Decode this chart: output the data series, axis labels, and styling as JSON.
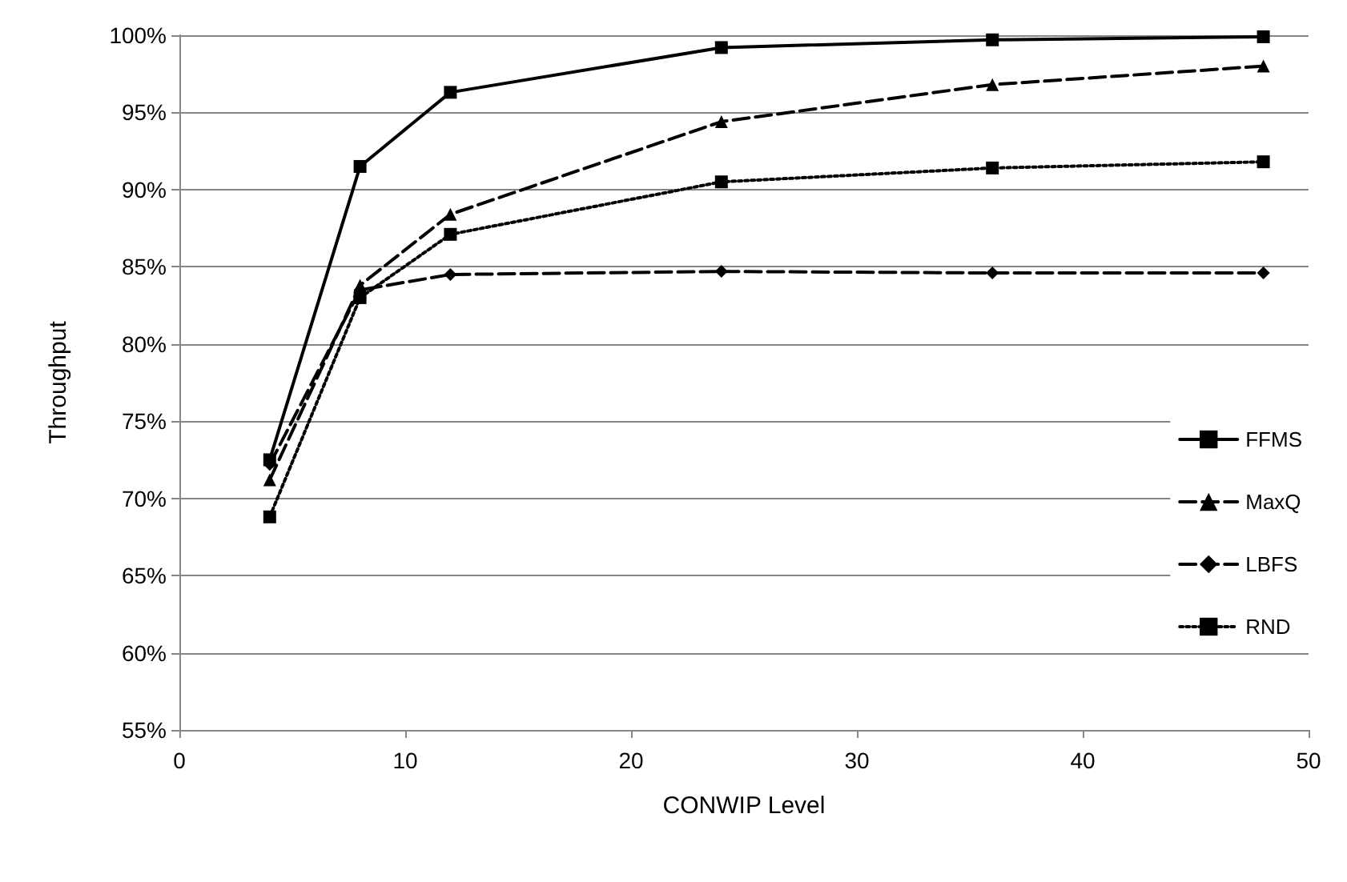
{
  "chart_data": {
    "type": "line",
    "xlabel": "CONWIP Level",
    "ylabel": "Throughput",
    "x": [
      4,
      8,
      12,
      24,
      36,
      48
    ],
    "series": [
      {
        "name": "FFMS",
        "color": "#000000",
        "marker": "square",
        "line_style": "solid",
        "values": [
          72.5,
          91.5,
          96.3,
          99.2,
          99.7,
          99.9
        ]
      },
      {
        "name": "MaxQ",
        "color": "#000000",
        "marker": "triangle",
        "line_style": "dashed",
        "values": [
          71.2,
          83.8,
          88.4,
          94.4,
          96.8,
          98.0
        ]
      },
      {
        "name": "LBFS",
        "color": "#000000",
        "marker": "diamond",
        "line_style": "dashed",
        "values": [
          72.2,
          83.5,
          84.5,
          84.7,
          84.6,
          84.6
        ]
      },
      {
        "name": "RND",
        "color": "#000000",
        "marker": "square",
        "line_style": "dotted",
        "values": [
          68.8,
          83.0,
          87.1,
          90.5,
          91.4,
          91.8
        ]
      }
    ],
    "xlim": [
      0,
      50
    ],
    "xticks": [
      0,
      10,
      20,
      30,
      40,
      50
    ],
    "ylim": [
      55,
      100
    ],
    "yticks": [
      {
        "value": 55,
        "label": "55%"
      },
      {
        "value": 60,
        "label": "60%"
      },
      {
        "value": 65,
        "label": "65%"
      },
      {
        "value": 70,
        "label": "70%"
      },
      {
        "value": 75,
        "label": "75%"
      },
      {
        "value": 80,
        "label": "80%"
      },
      {
        "value": 85,
        "label": "85%"
      },
      {
        "value": 90,
        "label": "90%"
      },
      {
        "value": 95,
        "label": "95%"
      },
      {
        "value": 100,
        "label": "100%"
      }
    ],
    "grid": "y",
    "legend": "right"
  }
}
